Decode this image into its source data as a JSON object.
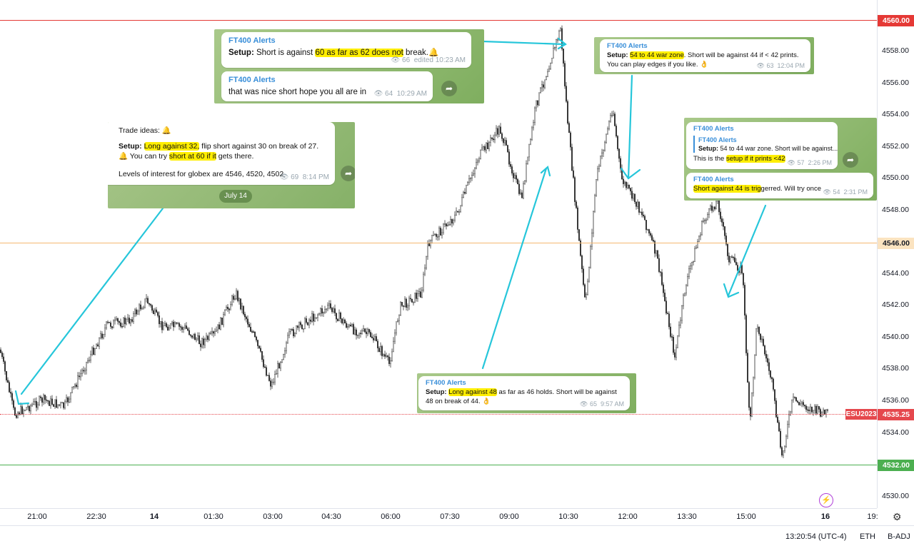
{
  "price_axis": {
    "ticks": [
      "4560.00",
      "4558.00",
      "4556.00",
      "4554.00",
      "4552.00",
      "4550.00",
      "4548.00",
      "4546.00",
      "4544.00",
      "4542.00",
      "4540.00",
      "4538.00",
      "4536.00",
      "4534.00",
      "4532.00",
      "4530.00"
    ],
    "line_labels": {
      "red": "4560.00",
      "orange": "4546.00",
      "green": "4532.00"
    },
    "current_price": "4535.25",
    "symbol": "ESU2023"
  },
  "time_axis": {
    "ticks": [
      "21:00",
      "22:30",
      "14",
      "01:30",
      "03:00",
      "04:30",
      "06:00",
      "07:30",
      "09:00",
      "10:30",
      "12:00",
      "13:30",
      "15:00",
      "16",
      "19:"
    ]
  },
  "status_bar": {
    "time": "13:20:54 (UTC-4)",
    "session": "ETH",
    "adj": "B-ADJ"
  },
  "colors": {
    "red_line": "#e53935",
    "orange_line": "#f5b971",
    "green_line": "#4caf50",
    "arrows": "#26c6da",
    "panel_green": "#8fbf6e",
    "highlight": "#ffee00"
  },
  "panels": {
    "p1": {
      "b1": {
        "sender": "FT400 Alerts",
        "setup": "Setup:",
        "t1": " Short is against ",
        "h1": "60 as far as 62 does not",
        "t2": " break.",
        "emoji": "🔔",
        "views": "66",
        "edited": "edited 10:23 AM"
      },
      "b2": {
        "sender": "FT400 Alerts",
        "text": "that was nice short hope you all are in",
        "views": "64",
        "time": "10:29 AM"
      }
    },
    "p2": {
      "header": "Trade ideas: 🔔",
      "setup": "Setup:",
      "h1": "Long against 32,",
      "t1": " flip short against 30 on break of 27. 🔔 You can try ",
      "h2": "short at 60 if it",
      "t2": " gets there.",
      "levels": "Levels of interest for globex are 4546, 4520, 4502",
      "views": "69",
      "time": "8:14 PM",
      "date_chip": "July 14"
    },
    "p3": {
      "sender": "FT400 Alerts",
      "setup": "Setup:",
      "h1": "54 to 44 war zone",
      "t1": ". Short will be against 44 if < 42 prints. You can play edges if you like. 👌",
      "views": "63",
      "time": "12:04 PM"
    },
    "p4": {
      "b1": {
        "sender": "FT400 Alerts",
        "quote_sender": "FT400 Alerts",
        "quote_setup": "Setup:",
        "quote_text": " 54 to 44 war zone. Short will be against...",
        "t1": "This is the ",
        "h1": "setup if it prints <42",
        "views": "57",
        "time": "2:26 PM"
      },
      "b2": {
        "sender": "FT400 Alerts",
        "h1": "Short against 44 is trig",
        "t1": "gerred. Will try once",
        "views": "54",
        "time": "2:31 PM"
      }
    },
    "p5": {
      "sender": "FT400 Alerts",
      "setup": "Setup:",
      "h1": "Long against 48",
      "t1": " as far as 46 holds. Short will be against 48 on break of 44. 👌",
      "views": "65",
      "time": "9:57 AM"
    }
  }
}
